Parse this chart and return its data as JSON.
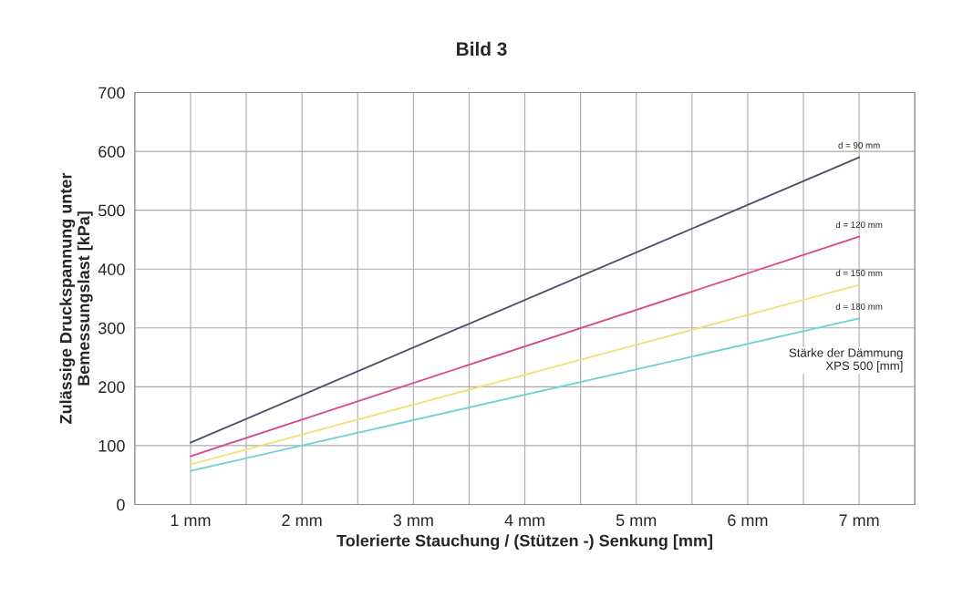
{
  "chart_data": {
    "type": "line",
    "title": "Bild 3",
    "xlabel": "Tolerierte Stauchung / (Stützen -) Senkung [mm]",
    "ylabel": "Zulässige Druckspannung unter\nBemessungslast [kPa]",
    "x": [
      1,
      7
    ],
    "series": [
      {
        "name": "d = 90 mm",
        "color": "#4b5068",
        "values": [
          105,
          590
        ]
      },
      {
        "name": "d = 120 mm",
        "color": "#d9468a",
        "values": [
          82,
          455
        ]
      },
      {
        "name": "d = 150 mm",
        "color": "#f0e07a",
        "values": [
          68,
          373
        ]
      },
      {
        "name": "d = 180 mm",
        "color": "#6fd0d6",
        "values": [
          57,
          316
        ]
      }
    ],
    "xlim": [
      0.5,
      7.5
    ],
    "xticks": [
      {
        "value": 0.5,
        "label": null
      },
      {
        "value": 1,
        "label": "1 mm"
      },
      {
        "value": 1.5,
        "label": null
      },
      {
        "value": 2,
        "label": "2 mm"
      },
      {
        "value": 2.5,
        "label": null
      },
      {
        "value": 3,
        "label": "3 mm"
      },
      {
        "value": 3.5,
        "label": null
      },
      {
        "value": 4,
        "label": "4 mm"
      },
      {
        "value": 4.5,
        "label": null
      },
      {
        "value": 5,
        "label": "5 mm"
      },
      {
        "value": 5.5,
        "label": null
      },
      {
        "value": 6,
        "label": "6 mm"
      },
      {
        "value": 6.5,
        "label": null
      },
      {
        "value": 7,
        "label": "7 mm"
      },
      {
        "value": 7.5,
        "label": null
      }
    ],
    "ylim": [
      0,
      700
    ],
    "yticks": [
      0,
      100,
      200,
      300,
      400,
      500,
      600,
      700
    ],
    "grid": true,
    "legend": false,
    "marker": "none",
    "line_style": "solid",
    "annotations": [
      "Stärke der Dämmung\nXPS 500 [mm]"
    ]
  }
}
